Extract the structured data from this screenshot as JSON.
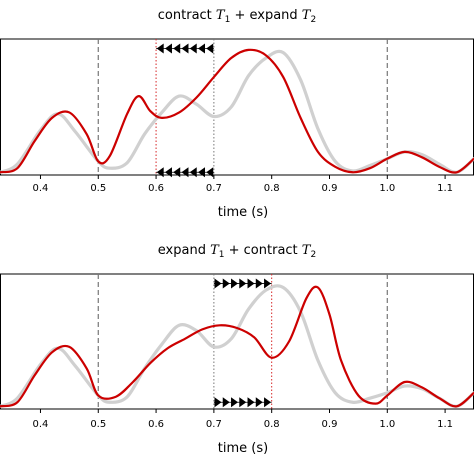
{
  "chart_data": [
    {
      "type": "line",
      "title_parts": [
        "contract ",
        "T",
        "1",
        " + expand ",
        "T",
        "2"
      ],
      "xlabel": "time (s)",
      "ylabel": "",
      "xlim": [
        0.33,
        1.15
      ],
      "ylim": [
        0,
        1
      ],
      "xticks": [
        0.4,
        0.5,
        0.6,
        0.7,
        0.8,
        0.9,
        1.0,
        1.1
      ],
      "xtick_labels": [
        "0.4",
        "0.5",
        "0.6",
        "0.7",
        "0.8",
        "0.9",
        "1.0",
        "1.1"
      ],
      "grid": false,
      "legend": "none",
      "vlines": [
        {
          "x": 0.5,
          "style": "dashed",
          "color": "#777777"
        },
        {
          "x": 0.6,
          "style": "dotted",
          "color": "#d62728"
        },
        {
          "x": 0.7,
          "style": "dotted",
          "color": "#777777"
        },
        {
          "x": 1.0,
          "style": "dashed",
          "color": "#777777"
        }
      ],
      "arrows": {
        "from": 0.6,
        "to": 0.7,
        "direction": "left",
        "count": 7,
        "rows": [
          0.93,
          0.02
        ]
      },
      "series": [
        {
          "color": "#d0d0d0",
          "x": [
            0.33,
            0.36,
            0.4,
            0.43,
            0.46,
            0.5,
            0.52,
            0.55,
            0.58,
            0.61,
            0.64,
            0.67,
            0.7,
            0.73,
            0.76,
            0.79,
            0.82,
            0.85,
            0.88,
            0.91,
            0.94,
            0.97,
            1.0,
            1.03,
            1.06,
            1.09,
            1.12,
            1.15
          ],
          "y": [
            0.02,
            0.08,
            0.33,
            0.45,
            0.32,
            0.1,
            0.05,
            0.09,
            0.3,
            0.46,
            0.58,
            0.52,
            0.43,
            0.5,
            0.73,
            0.86,
            0.9,
            0.7,
            0.34,
            0.1,
            0.03,
            0.07,
            0.12,
            0.17,
            0.15,
            0.08,
            0.02,
            0.12
          ]
        },
        {
          "color": "#cc0000",
          "x": [
            0.33,
            0.36,
            0.39,
            0.42,
            0.45,
            0.48,
            0.5,
            0.52,
            0.55,
            0.57,
            0.59,
            0.61,
            0.64,
            0.67,
            0.7,
            0.73,
            0.76,
            0.79,
            0.82,
            0.85,
            0.88,
            0.91,
            0.94,
            0.97,
            1.0,
            1.03,
            1.06,
            1.09,
            1.12,
            1.15
          ],
          "y": [
            0.02,
            0.05,
            0.25,
            0.42,
            0.46,
            0.3,
            0.1,
            0.14,
            0.45,
            0.58,
            0.47,
            0.42,
            0.46,
            0.57,
            0.72,
            0.86,
            0.92,
            0.88,
            0.72,
            0.42,
            0.17,
            0.06,
            0.02,
            0.05,
            0.12,
            0.17,
            0.13,
            0.06,
            0.02,
            0.12
          ]
        }
      ]
    },
    {
      "type": "line",
      "title_parts": [
        "expand ",
        "T",
        "1",
        " + contract ",
        "T",
        "2"
      ],
      "xlabel": "time (s)",
      "ylabel": "",
      "xlim": [
        0.33,
        1.15
      ],
      "ylim": [
        0,
        1
      ],
      "xticks": [
        0.4,
        0.5,
        0.6,
        0.7,
        0.8,
        0.9,
        1.0,
        1.1
      ],
      "xtick_labels": [
        "0.4",
        "0.5",
        "0.6",
        "0.7",
        "0.8",
        "0.9",
        "1.0",
        "1.1"
      ],
      "grid": false,
      "legend": "none",
      "vlines": [
        {
          "x": 0.5,
          "style": "dashed",
          "color": "#777777"
        },
        {
          "x": 0.7,
          "style": "dotted",
          "color": "#777777"
        },
        {
          "x": 0.8,
          "style": "dotted",
          "color": "#d62728"
        },
        {
          "x": 1.0,
          "style": "dashed",
          "color": "#777777"
        }
      ],
      "arrows": {
        "from": 0.7,
        "to": 0.8,
        "direction": "right",
        "count": 7,
        "rows": [
          0.93,
          0.05
        ]
      },
      "series": [
        {
          "color": "#d0d0d0",
          "x": [
            0.33,
            0.36,
            0.4,
            0.43,
            0.46,
            0.5,
            0.52,
            0.55,
            0.58,
            0.61,
            0.64,
            0.67,
            0.7,
            0.73,
            0.76,
            0.79,
            0.82,
            0.85,
            0.88,
            0.91,
            0.94,
            0.97,
            1.0,
            1.03,
            1.06,
            1.09,
            1.12,
            1.15
          ],
          "y": [
            0.02,
            0.08,
            0.33,
            0.45,
            0.32,
            0.1,
            0.05,
            0.09,
            0.3,
            0.48,
            0.62,
            0.58,
            0.46,
            0.52,
            0.74,
            0.88,
            0.9,
            0.72,
            0.36,
            0.12,
            0.05,
            0.08,
            0.12,
            0.17,
            0.15,
            0.08,
            0.02,
            0.12
          ]
        },
        {
          "color": "#cc0000",
          "x": [
            0.33,
            0.36,
            0.39,
            0.42,
            0.45,
            0.48,
            0.5,
            0.53,
            0.56,
            0.59,
            0.62,
            0.65,
            0.68,
            0.71,
            0.74,
            0.77,
            0.8,
            0.83,
            0.86,
            0.88,
            0.9,
            0.92,
            0.95,
            0.98,
            1.0,
            1.03,
            1.06,
            1.09,
            1.12,
            1.15
          ],
          "y": [
            0.02,
            0.05,
            0.25,
            0.42,
            0.46,
            0.3,
            0.1,
            0.09,
            0.2,
            0.34,
            0.45,
            0.52,
            0.59,
            0.62,
            0.6,
            0.53,
            0.38,
            0.5,
            0.82,
            0.9,
            0.7,
            0.36,
            0.1,
            0.04,
            0.1,
            0.2,
            0.16,
            0.08,
            0.02,
            0.12
          ]
        }
      ]
    }
  ]
}
